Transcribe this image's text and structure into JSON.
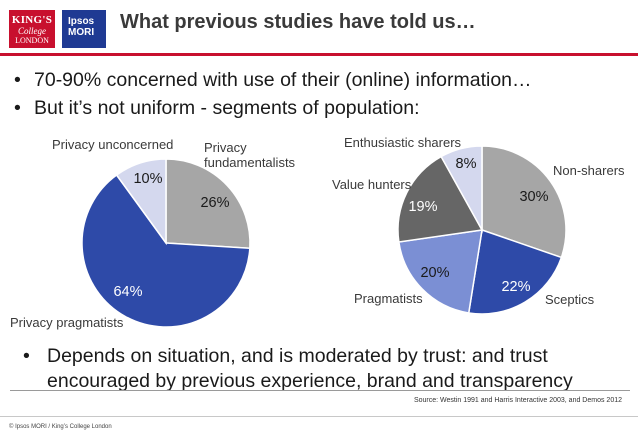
{
  "header": {
    "logo_kings": [
      "KING'S",
      "College",
      "LONDON"
    ],
    "logo_ipsos": [
      "Ipsos",
      "MORI"
    ],
    "title": "What previous studies have told us…"
  },
  "bullets": [
    "70-90% concerned with use of their (online) information…",
    "But it’s not uniform - segments of population:"
  ],
  "chart_data": [
    {
      "type": "pie",
      "categories": [
        "Privacy fundamentalists",
        "Privacy pragmatists",
        "Privacy unconcerned"
      ],
      "values": [
        26,
        64,
        10
      ],
      "colors": [
        "#a6a6a6",
        "#2e4aa8",
        "#d4d8ee"
      ],
      "data_labels": [
        "26%",
        "64%",
        "10%"
      ],
      "category_labels": [
        "Privacy fundamentalists",
        "Privacy pragmatists",
        "Privacy unconcerned"
      ]
    },
    {
      "type": "pie",
      "categories": [
        "Non-sharers",
        "Sceptics",
        "Pragmatists",
        "Value hunters",
        "Enthusiastic sharers"
      ],
      "values": [
        30,
        22,
        20,
        19,
        8
      ],
      "colors": [
        "#a6a6a6",
        "#2e4aa8",
        "#7b8fd4",
        "#666666",
        "#d4d8ee"
      ],
      "data_labels": [
        "30%",
        "22%",
        "20%",
        "19%",
        "8%"
      ],
      "category_labels": [
        "Non-sharers",
        "Sceptics",
        "Pragmatists",
        "Value hunters",
        "Enthusiastic sharers"
      ]
    }
  ],
  "bottom_bullet": "Depends on situation, and is moderated by trust: and trust encouraged by previous experience, brand and transparency",
  "source": "Source: Westin 1991 and Harris Interactive 2003, and Demos 2012",
  "footer": "© Ipsos MORI / King’s College London"
}
